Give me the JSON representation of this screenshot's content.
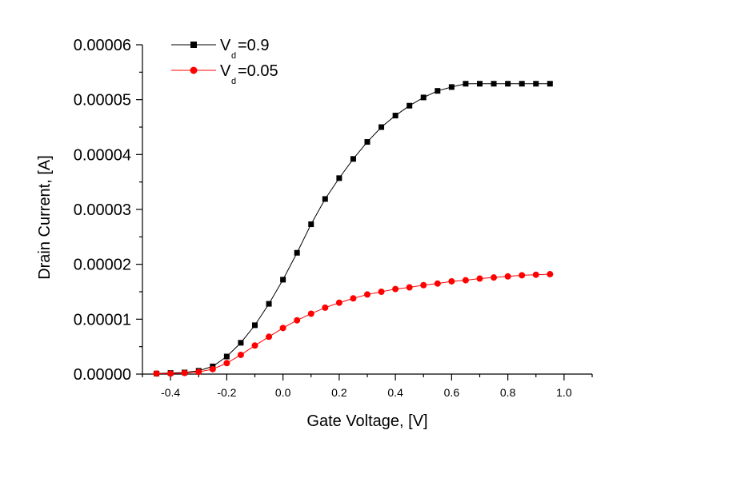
{
  "chart_data": {
    "type": "line",
    "title": "",
    "xlabel": "Gate Voltage, [V]",
    "ylabel": "Drain Current, [A]",
    "xlim": [
      -0.5,
      1.1
    ],
    "ylim": [
      0,
      6e-05
    ],
    "x_ticks": [
      -0.4,
      -0.2,
      0.0,
      0.2,
      0.4,
      0.6,
      0.8,
      1.0
    ],
    "x_tick_labels": [
      "-0.4",
      "-0.2",
      "0.0",
      "0.2",
      "0.4",
      "0.6",
      "0.8",
      "1.0"
    ],
    "y_ticks": [
      0,
      1e-05,
      2e-05,
      3e-05,
      4e-05,
      5e-05,
      6e-05
    ],
    "y_tick_labels": [
      "0.00000",
      "0.00001",
      "0.00002",
      "0.00003",
      "0.00004",
      "0.00005",
      "0.00006"
    ],
    "grid": false,
    "legend_position": "top-left",
    "x": [
      -0.45,
      -0.4,
      -0.35,
      -0.3,
      -0.25,
      -0.2,
      -0.15,
      -0.1,
      -0.05,
      0.0,
      0.05,
      0.1,
      0.15,
      0.2,
      0.25,
      0.3,
      0.35,
      0.4,
      0.45,
      0.5,
      0.55,
      0.6,
      0.65,
      0.7,
      0.75,
      0.8,
      0.85,
      0.9,
      0.95
    ],
    "series": [
      {
        "name": "V",
        "legend_subscript": "d",
        "legend_suffix": "=0.9",
        "color": "#000000",
        "marker": "square",
        "values": [
          1e-07,
          2e-07,
          3e-07,
          6e-07,
          1.4e-06,
          3.2e-06,
          5.7e-06,
          8.9e-06,
          1.28e-05,
          1.72e-05,
          2.21e-05,
          2.73e-05,
          3.19e-05,
          3.57e-05,
          3.92e-05,
          4.23e-05,
          4.5e-05,
          4.71e-05,
          4.89e-05,
          5.04e-05,
          5.16e-05,
          5.23e-05,
          5.29e-05,
          5.29e-05,
          5.29e-05,
          5.29e-05,
          5.29e-05,
          5.29e-05,
          5.29e-05
        ]
      },
      {
        "name": "V",
        "legend_subscript": "d",
        "legend_suffix": "=0.05",
        "color": "#ff0000",
        "marker": "circle",
        "values": [
          1e-07,
          1e-07,
          2e-07,
          4e-07,
          9e-07,
          2e-06,
          3.5e-06,
          5.2e-06,
          6.8e-06,
          8.4e-06,
          9.8e-06,
          1.1e-05,
          1.21e-05,
          1.3e-05,
          1.38e-05,
          1.45e-05,
          1.5e-05,
          1.55e-05,
          1.58e-05,
          1.62e-05,
          1.65e-05,
          1.69e-05,
          1.71e-05,
          1.74e-05,
          1.76e-05,
          1.78e-05,
          1.8e-05,
          1.81e-05,
          1.82e-05
        ]
      }
    ]
  }
}
